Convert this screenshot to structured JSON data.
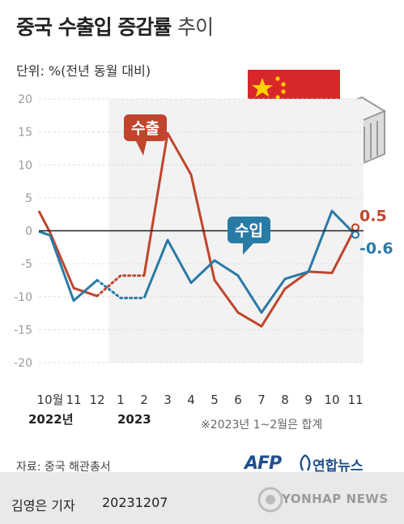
{
  "title_bold": "중국 수출입 증감률",
  "title_light": "추이",
  "unit_label": "단위: %(전년 동월 대비)",
  "note": "※2023년 1~2월은 합계",
  "source": "자료: 중국 해관총서",
  "logos": {
    "afp": "AFP",
    "yonhap": "연합뉴스",
    "watermark": "YONHAP NEWS"
  },
  "reporter": "김영은 기자",
  "date": "20231207",
  "colors": {
    "export": "#c0452c",
    "import": "#2a7aa6",
    "axis_text": "#9a9a9a",
    "zero_line": "#222222",
    "grid": "#dddddd"
  },
  "chart_data": {
    "type": "line",
    "x": [
      "10월",
      "11",
      "12",
      "1",
      "2",
      "3",
      "4",
      "5",
      "6",
      "7",
      "8",
      "9",
      "10",
      "11"
    ],
    "year_labels": [
      "2022년",
      "2023"
    ],
    "ylim": [
      -20,
      20
    ],
    "yticks": [
      20,
      15,
      10,
      5,
      0,
      -5,
      -10,
      -15,
      -20
    ],
    "series": [
      {
        "name": "수출",
        "values": [
          -0.3,
          -8.7,
          -9.9,
          -6.8,
          -6.8,
          14.8,
          8.5,
          -7.5,
          -12.4,
          -14.5,
          -8.8,
          -6.2,
          -6.4,
          0.5
        ],
        "lead_in": 3.0,
        "end_label": "0.5"
      },
      {
        "name": "수입",
        "values": [
          -0.7,
          -10.6,
          -7.5,
          -10.2,
          -10.2,
          -1.4,
          -7.9,
          -4.5,
          -6.8,
          -12.4,
          -7.3,
          -6.2,
          3.0,
          -0.6
        ],
        "lead_in": -0.1,
        "end_label": "-0.6"
      }
    ]
  }
}
